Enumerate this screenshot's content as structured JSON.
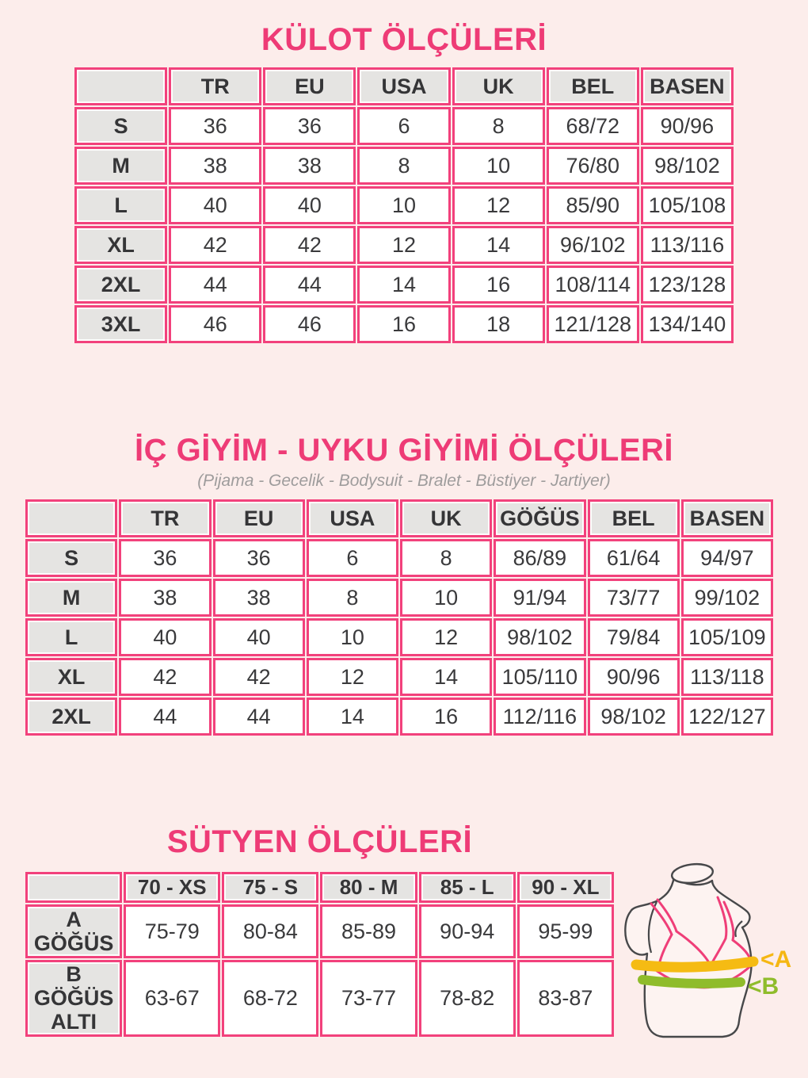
{
  "page": {
    "background": "#fcedeb",
    "title_color": "#ee3b76",
    "table_border_color": "#f2417c",
    "header_cell_color": "#e5e4e2",
    "text_color": "#3a3a3c"
  },
  "sections": [
    {
      "title": "KÜLOT ÖLÇÜLERİ",
      "table": {
        "headers": [
          "",
          "TR",
          "EU",
          "USA",
          "UK",
          "BEL",
          "BASEN"
        ],
        "rows": [
          {
            "label": "S",
            "values": [
              "36",
              "36",
              "6",
              "8",
              "68/72",
              "90/96"
            ]
          },
          {
            "label": "M",
            "values": [
              "38",
              "38",
              "8",
              "10",
              "76/80",
              "98/102"
            ]
          },
          {
            "label": "L",
            "values": [
              "40",
              "40",
              "10",
              "12",
              "85/90",
              "105/108"
            ]
          },
          {
            "label": "XL",
            "values": [
              "42",
              "42",
              "12",
              "14",
              "96/102",
              "113/116"
            ]
          },
          {
            "label": "2XL",
            "values": [
              "44",
              "44",
              "14",
              "16",
              "108/114",
              "123/128"
            ]
          },
          {
            "label": "3XL",
            "values": [
              "46",
              "46",
              "16",
              "18",
              "121/128",
              "134/140"
            ]
          }
        ]
      }
    },
    {
      "title": "İÇ GİYİM - UYKU GİYİMİ ÖLÇÜLERİ",
      "subtitle": "(Pijama - Gecelik - Bodysuit - Bralet - Büstiyer - Jartiyer)",
      "table": {
        "headers": [
          "",
          "TR",
          "EU",
          "USA",
          "UK",
          "GÖĞÜS",
          "BEL",
          "BASEN"
        ],
        "rows": [
          {
            "label": "S",
            "values": [
              "36",
              "36",
              "6",
              "8",
              "86/89",
              "61/64",
              "94/97"
            ]
          },
          {
            "label": "M",
            "values": [
              "38",
              "38",
              "8",
              "10",
              "91/94",
              "73/77",
              "99/102"
            ]
          },
          {
            "label": "L",
            "values": [
              "40",
              "40",
              "10",
              "12",
              "98/102",
              "79/84",
              "105/109"
            ]
          },
          {
            "label": "XL",
            "values": [
              "42",
              "42",
              "12",
              "14",
              "105/110",
              "90/96",
              "113/118"
            ]
          },
          {
            "label": "2XL",
            "values": [
              "44",
              "44",
              "14",
              "16",
              "112/116",
              "98/102",
              "122/127"
            ]
          }
        ]
      }
    },
    {
      "title": "SÜTYEN ÖLÇÜLERİ",
      "table": {
        "headers": [
          "",
          "70 - XS",
          "75 - S",
          "80 - M",
          "85 - L",
          "90 - XL"
        ],
        "rows": [
          {
            "label": "A GÖĞÜS",
            "values": [
              "75-79",
              "80-84",
              "85-89",
              "90-94",
              "95-99"
            ]
          },
          {
            "label": "B GÖĞÜS ALTI",
            "values": [
              "63-67",
              "68-72",
              "73-77",
              "78-82",
              "83-87"
            ]
          }
        ]
      },
      "figure": {
        "label_a": "<A",
        "label_b": "<B",
        "band_a_color": "#f5bb13",
        "band_b_color": "#8fbc2b",
        "bra_color": "#ef3e78",
        "outline_color": "#47484a"
      }
    }
  ]
}
